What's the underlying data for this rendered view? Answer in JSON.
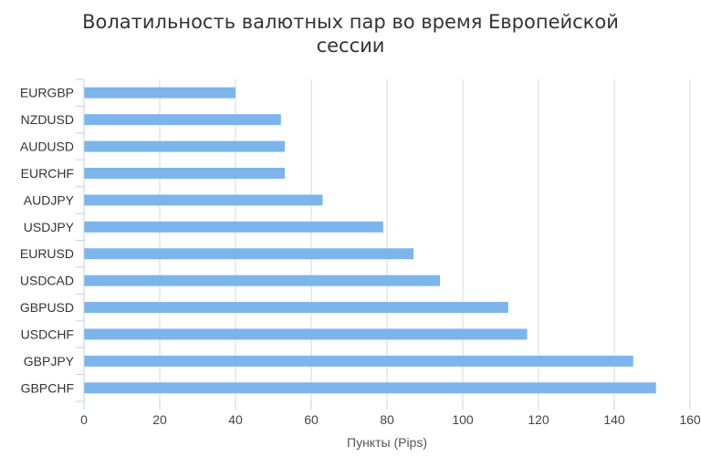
{
  "chart_data": {
    "type": "bar",
    "orientation": "horizontal",
    "title": "Волатильность валютных пар во время Европейской сессии",
    "title_lines": [
      "Волатильность валютных пар во время Европейской",
      "сессии"
    ],
    "xlabel": "Пункты (Pips)",
    "ylabel": "",
    "categories": [
      "EURGBP",
      "NZDUSD",
      "AUDUSD",
      "EURCHF",
      "AUDJPY",
      "USDJPY",
      "EURUSD",
      "USDCAD",
      "GBPUSD",
      "USDCHF",
      "GBPJPY",
      "GBPCHF"
    ],
    "values": [
      40,
      52,
      53,
      53,
      63,
      79,
      87,
      94,
      112,
      117,
      145,
      151
    ],
    "xlim": [
      0,
      160
    ],
    "xticks": [
      0,
      20,
      40,
      60,
      80,
      100,
      120,
      140,
      160
    ],
    "grid": true,
    "legend": "none",
    "bar_color": "#7cb5ec",
    "grid_color": "#d8d8d8",
    "axis_color": "#c0d0e0"
  }
}
